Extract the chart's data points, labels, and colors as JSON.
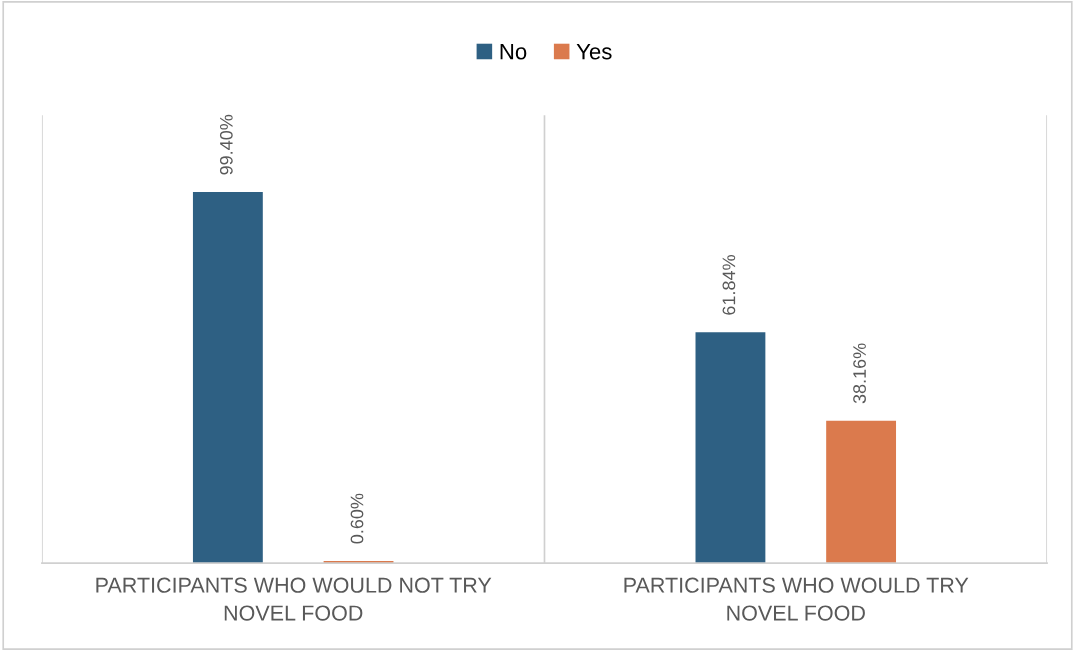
{
  "chart_data": {
    "type": "bar",
    "categories": [
      "PARTICIPANTS WHO WOULD NOT TRY NOVEL FOOD",
      "PARTICIPANTS WHO WOULD TRY NOVEL FOOD"
    ],
    "series": [
      {
        "name": "No",
        "color": "#2e6083",
        "values": [
          99.4,
          61.84
        ],
        "value_labels": [
          "99.40%",
          "61.84%"
        ]
      },
      {
        "name": "Yes",
        "color": "#db7a4d",
        "values": [
          0.6,
          38.16
        ],
        "value_labels": [
          "0.60%",
          "38.16%"
        ]
      }
    ],
    "ylim": [
      0,
      120
    ],
    "tick_labels": "x",
    "grid": "x",
    "legend": "top"
  }
}
